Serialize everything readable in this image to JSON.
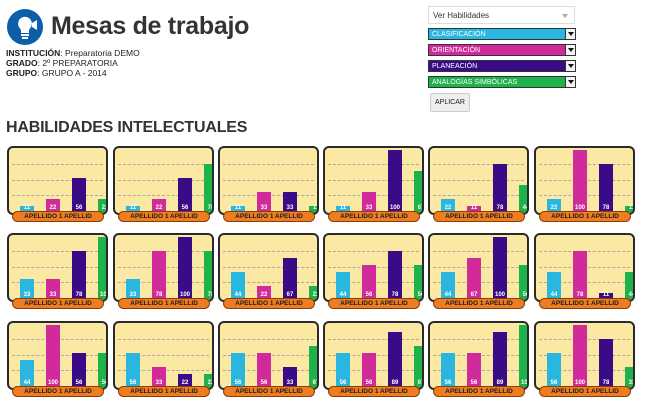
{
  "app": {
    "title": "Mesas de trabajo",
    "logo_icon": "lightbulb-icon",
    "logo_color": "#0a5fa8"
  },
  "info": [
    {
      "key": "INSTITUCIÓN",
      "value": "Preparatoria DEMO"
    },
    {
      "key": "GRADO",
      "value": "2º PREPARATORIA"
    },
    {
      "key": "GRUPO",
      "value": "GRUPO A - 2014"
    }
  ],
  "controls": {
    "view_selected": "Ver Habilidades",
    "selects": [
      {
        "label": "CLASIFICACIÓN",
        "color": "#29b6df"
      },
      {
        "label": "ORIENTACIÓN",
        "color": "#d12a9a"
      },
      {
        "label": "PLANEACIÓN",
        "color": "#3a0b87"
      },
      {
        "label": "ANALOGÍAS SIMBÓLICAS",
        "color": "#1db34a"
      }
    ],
    "apply_label": "APLICAR"
  },
  "section_title": "HABILIDADES INTELECTUALES",
  "series_colors": [
    "#29b6df",
    "#d12a9a",
    "#3a0b87",
    "#1db34a"
  ],
  "chart_data": {
    "type": "bar",
    "series": [
      "CLASIFICACIÓN",
      "ORIENTACIÓN",
      "PLANEACIÓN",
      "ANALOGÍAS SIMBÓLICAS"
    ],
    "ylim": [
      0,
      100
    ],
    "cards": [
      {
        "label": "APELLIDO 1 APELLID",
        "values": [
          11,
          22,
          56,
          22
        ]
      },
      {
        "label": "APELLIDO 1 APELLID",
        "values": [
          11,
          22,
          56,
          78
        ]
      },
      {
        "label": "APELLIDO 1 APELLID",
        "values": [
          11,
          33,
          33,
          11
        ]
      },
      {
        "label": "APELLIDO 1 APELLID",
        "values": [
          11,
          33,
          100,
          67
        ]
      },
      {
        "label": "APELLIDO 1 APELLID",
        "values": [
          22,
          11,
          78,
          44
        ]
      },
      {
        "label": "APELLIDO 1 APELLID",
        "values": [
          22,
          100,
          78,
          11
        ]
      },
      {
        "label": "APELLIDO 1 APELLID",
        "values": [
          33,
          33,
          78,
          100
        ]
      },
      {
        "label": "APELLIDO 1 APELLID",
        "values": [
          33,
          78,
          100,
          78
        ]
      },
      {
        "label": "APELLIDO 1 APELLID",
        "values": [
          44,
          22,
          67,
          22
        ]
      },
      {
        "label": "APELLIDO 1 APELLID",
        "values": [
          44,
          56,
          78,
          56
        ]
      },
      {
        "label": "APELLIDO 1 APELLID",
        "values": [
          44,
          67,
          100,
          56
        ]
      },
      {
        "label": "APELLIDO 1 APELLID",
        "values": [
          44,
          78,
          11,
          44
        ]
      },
      {
        "label": "APELLIDO 1 APELLID",
        "values": [
          44,
          100,
          56,
          56
        ]
      },
      {
        "label": "APELLIDO 1 APELLID",
        "values": [
          56,
          33,
          22,
          22
        ]
      },
      {
        "label": "APELLIDO 1 APELLID",
        "values": [
          56,
          56,
          33,
          67
        ]
      },
      {
        "label": "APELLIDO 1 APELLID",
        "values": [
          56,
          56,
          89,
          67
        ]
      },
      {
        "label": "APELLIDO 1 APELLID",
        "values": [
          56,
          56,
          89,
          100
        ]
      },
      {
        "label": "APELLIDO 1 APELLID",
        "values": [
          56,
          100,
          78,
          33
        ]
      }
    ]
  }
}
